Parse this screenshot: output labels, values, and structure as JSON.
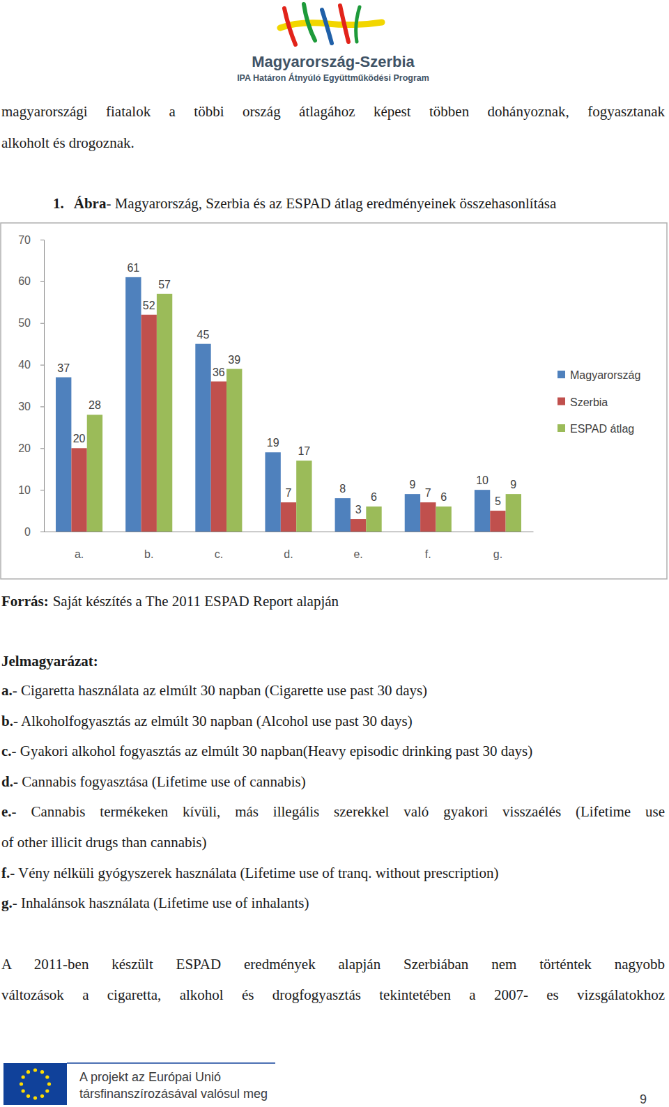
{
  "header": {
    "logo_title": "Magyarország-Szerbia",
    "logo_subtitle": "IPA Határon Átnyúló Együttműködési Program"
  },
  "intro_lines": [
    "magyarországi fiatalok a többi ország átlagához képest többen dohányoznak, fogyasztanak",
    "alkoholt és drogoznak."
  ],
  "figure": {
    "number": "1.",
    "label": "Ábra",
    "caption": "- Magyarország, Szerbia és az ESPAD átlag eredményeinek összehasonlítása"
  },
  "chart_data": {
    "type": "bar",
    "categories": [
      "a.",
      "b.",
      "c.",
      "d.",
      "e.",
      "f.",
      "g."
    ],
    "series": [
      {
        "name": "Magyarország",
        "color": "#4f81bd",
        "values": [
          37,
          61,
          45,
          19,
          8,
          9,
          10
        ]
      },
      {
        "name": "Szerbia",
        "color": "#c0504d",
        "values": [
          20,
          52,
          36,
          7,
          3,
          7,
          5
        ]
      },
      {
        "name": "ESPAD átlag",
        "color": "#9bbb59",
        "values": [
          28,
          57,
          39,
          17,
          6,
          6,
          9
        ]
      }
    ],
    "ylim": [
      0,
      70
    ],
    "yticks": [
      0,
      10,
      20,
      30,
      40,
      50,
      60,
      70
    ],
    "grid": false,
    "legend": "right",
    "data_labels": true
  },
  "source": {
    "label": "Forrás:",
    "text": "Saját készítés a The 2011 ESPAD Report alapján"
  },
  "key_title": "Jelmagyarázat:",
  "key_items": [
    {
      "key": "a.",
      "lines": [
        "- Cigaretta használata az elmúlt 30 napban (Cigarette use past 30 days)"
      ]
    },
    {
      "key": "b.",
      "lines": [
        "- Alkoholfogyasztás az elmúlt 30 napban (Alcohol use past 30 days)"
      ]
    },
    {
      "key": "c.",
      "lines": [
        "- Gyakori alkohol fogyasztás az elmúlt 30 napban(Heavy episodic drinking past 30 days)"
      ]
    },
    {
      "key": "d.",
      "lines": [
        "- Cannabis fogyasztása (Lifetime use of cannabis)"
      ]
    },
    {
      "key": "e.",
      "lines": [
        "- Cannabis termékeken kívüli, más illegális szerekkel való gyakori visszaélés (Lifetime use",
        "of other illicit drugs than cannabis)"
      ]
    },
    {
      "key": "f.",
      "lines": [
        "- Vény nélküli gyógyszerek használata (Lifetime use of tranq. without prescription)"
      ]
    },
    {
      "key": "g.",
      "lines": [
        "- Inhalánsok használata (Lifetime use of inhalants)"
      ]
    }
  ],
  "closing_lines": [
    "A 2011-ben készült ESPAD eredmények alapján Szerbiában nem történtek nagyobb",
    "változások a cigaretta, alkohol és drogfogyasztás tekintetében a 2007- es vizsgálatokhoz"
  ],
  "footer": {
    "lines": [
      "A projekt az Európai Unió",
      "társfinanszírozásával valósul meg"
    ],
    "page_number": "9"
  }
}
